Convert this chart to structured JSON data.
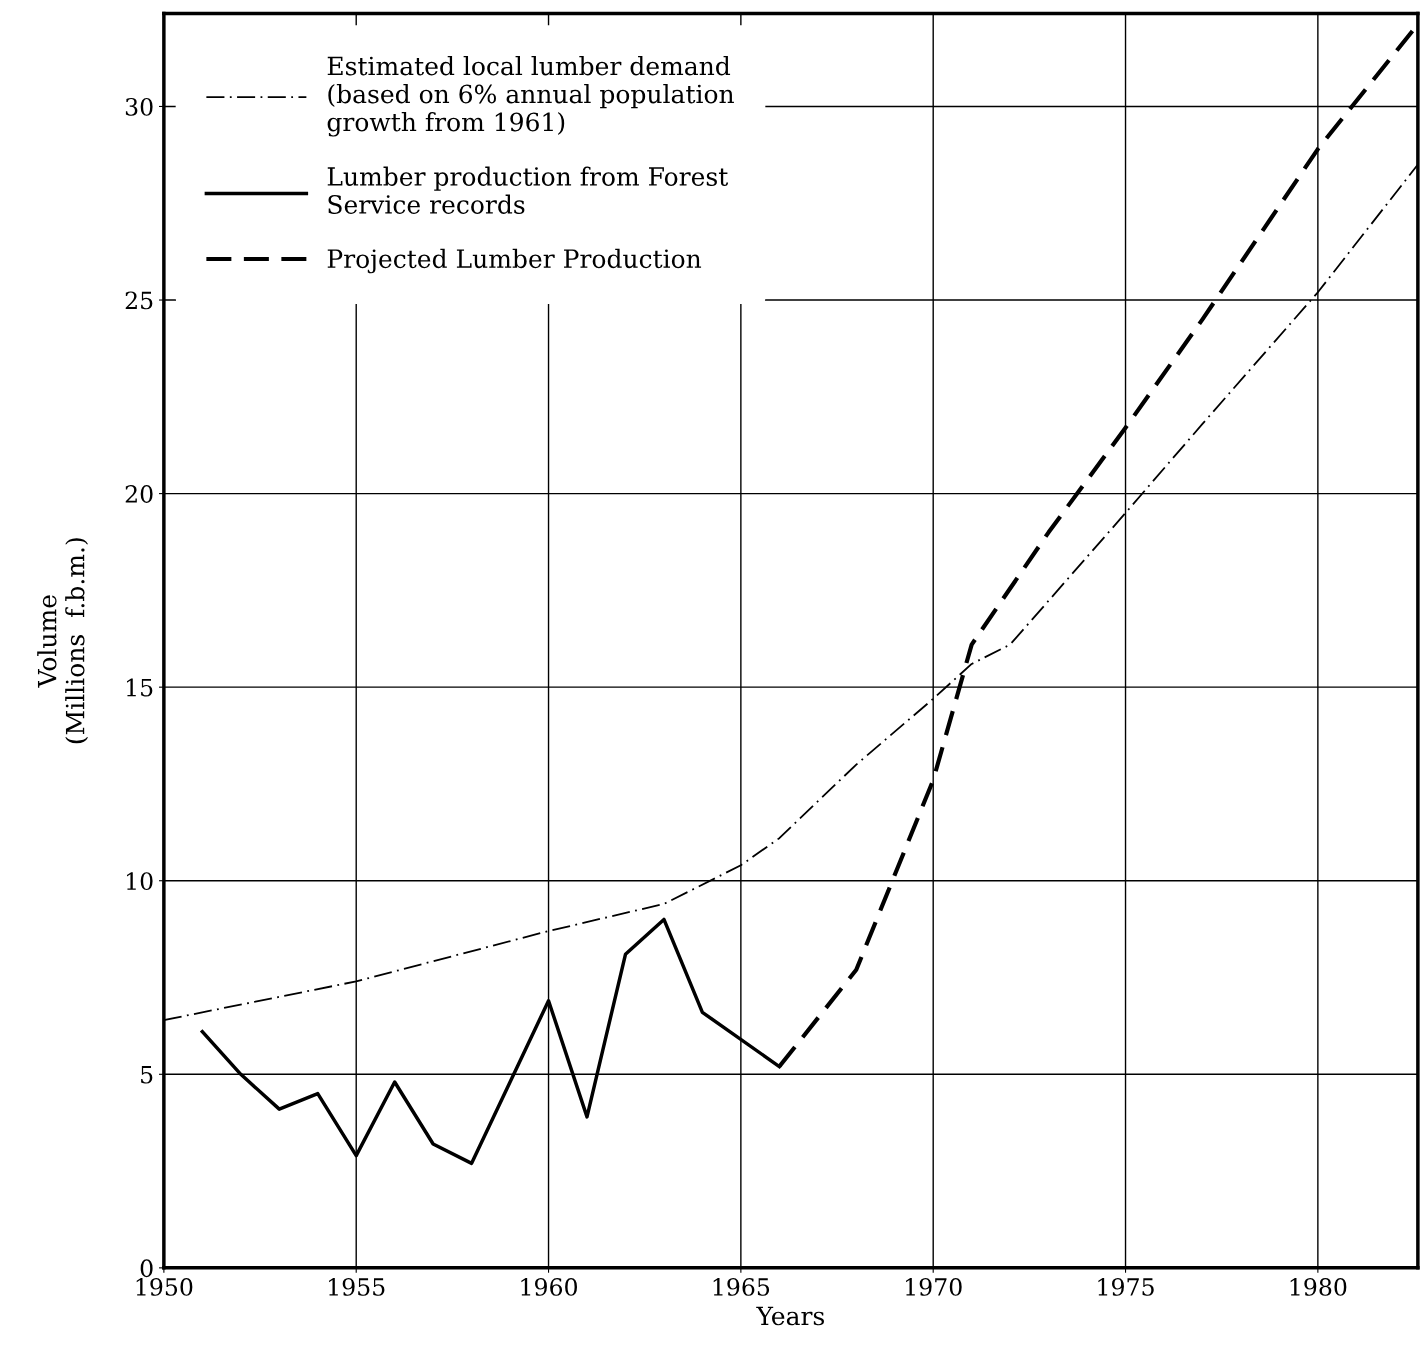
{
  "chart_data": {
    "type": "line",
    "xlabel": "Years",
    "ylabel": "Volume\n(Millions  f.b.m.)",
    "xlim": [
      1950,
      1982.6
    ],
    "ylim": [
      0,
      32.4
    ],
    "xticks": [
      1950,
      1955,
      1960,
      1965,
      1970,
      1975,
      1980
    ],
    "yticks": [
      0,
      5,
      10,
      15,
      20,
      25,
      30
    ],
    "grid": true,
    "legend": "top left",
    "marker": "none",
    "series": [
      {
        "name": "Estimated local lumber demand\n(based on 6% annual population\ngrowth from 1961)",
        "color": "#000000",
        "line_style": "dashdot",
        "x": [
          1950,
          1955,
          1960,
          1963,
          1965,
          1966,
          1968,
          1970,
          1971,
          1972,
          1975,
          1977,
          1980,
          1982.6
        ],
        "values": [
          6.4,
          7.4,
          8.7,
          9.4,
          10.4,
          11.1,
          13.0,
          14.7,
          15.6,
          16.1,
          19.5,
          21.8,
          25.2,
          28.5
        ]
      },
      {
        "name": "Lumber production from Forest\nService records",
        "color": "#000000",
        "line_style": "solid",
        "x": [
          1951,
          1952,
          1953,
          1954,
          1955,
          1956,
          1957,
          1958,
          1959,
          1960,
          1961,
          1962,
          1963,
          1964,
          1966
        ],
        "values": [
          6.1,
          5.0,
          4.1,
          4.5,
          2.9,
          4.8,
          3.2,
          2.7,
          4.8,
          6.9,
          3.9,
          8.1,
          9.0,
          6.6,
          5.2
        ]
      },
      {
        "name": "Projected Lumber Production",
        "color": "#000000",
        "line_style": "dashed",
        "x": [
          1966,
          1968,
          1970,
          1971,
          1973,
          1975,
          1977,
          1980,
          1982.5
        ],
        "values": [
          5.2,
          7.7,
          12.6,
          16.1,
          19.0,
          21.7,
          24.5,
          28.9,
          32.0
        ]
      }
    ]
  }
}
